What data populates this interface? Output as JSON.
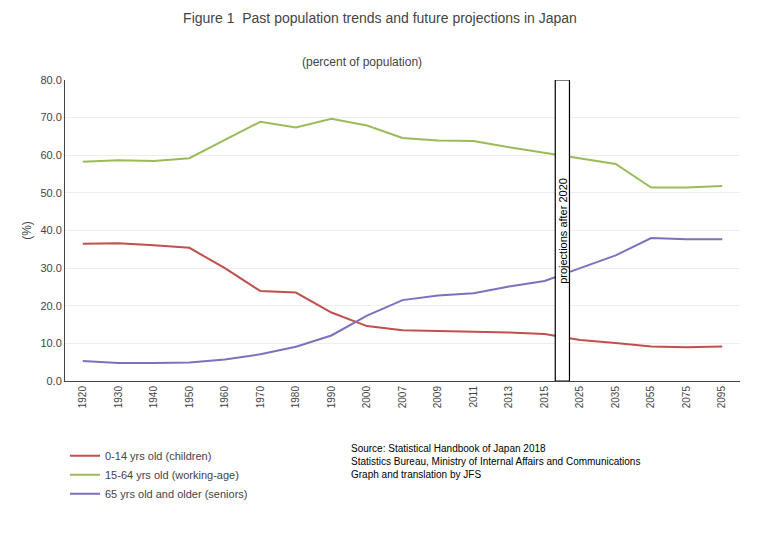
{
  "chart_data": {
    "type": "line",
    "title": "Figure 1  Past population trends and future projections in Japan",
    "subtitle": "(percent of population)",
    "ylabel": "(%)",
    "categories": [
      "1920",
      "1930",
      "1940",
      "1950",
      "1960",
      "1970",
      "1980",
      "1990",
      "2000",
      "2007",
      "2009",
      "2011",
      "2013",
      "2015",
      "2025",
      "2035",
      "2055",
      "2075",
      "2095"
    ],
    "series": [
      {
        "name": "0-14 yrs old (children)",
        "color": "#c0504d",
        "values": [
          36.5,
          36.6,
          36.1,
          35.4,
          30.0,
          23.9,
          23.5,
          18.2,
          14.6,
          13.5,
          13.3,
          13.1,
          12.9,
          12.5,
          10.9,
          10.1,
          9.2,
          9.0,
          9.2
        ]
      },
      {
        "name": "15-64 yrs old (working-age)",
        "color": "#9bbb59",
        "values": [
          58.3,
          58.7,
          58.5,
          59.2,
          64.1,
          68.9,
          67.4,
          69.7,
          67.9,
          64.6,
          63.9,
          63.8,
          62.1,
          60.7,
          59.1,
          57.7,
          51.4,
          51.4,
          51.8
        ]
      },
      {
        "name": "65 yrs old and older (seniors)",
        "color": "#7f6fbf",
        "values": [
          5.3,
          4.8,
          4.8,
          4.9,
          5.7,
          7.1,
          9.1,
          12.1,
          17.4,
          21.5,
          22.7,
          23.3,
          25.1,
          26.6,
          30.0,
          33.4,
          38.0,
          37.7,
          37.7
        ]
      }
    ],
    "ylim": [
      0.0,
      80.0
    ],
    "yticks": [
      {
        "value": 0,
        "label": "0.0"
      },
      {
        "value": 10,
        "label": "10.0"
      },
      {
        "value": 20,
        "label": "20.0"
      },
      {
        "value": 30,
        "label": "30.0"
      },
      {
        "value": 40,
        "label": "40.0"
      },
      {
        "value": 50,
        "label": "50.0"
      },
      {
        "value": 60,
        "label": "60.0"
      },
      {
        "value": 70,
        "label": "70.0"
      },
      {
        "value": 80,
        "label": "80.0"
      }
    ],
    "grid": true,
    "legend": "lower left",
    "annotations": [
      "projections after 2020",
      "Source: Statistical Handbook of Japan 2018\nStatistics Bureau, Ministry of Internal Affairs and Communications\nGraph and translation by JFS"
    ]
  }
}
